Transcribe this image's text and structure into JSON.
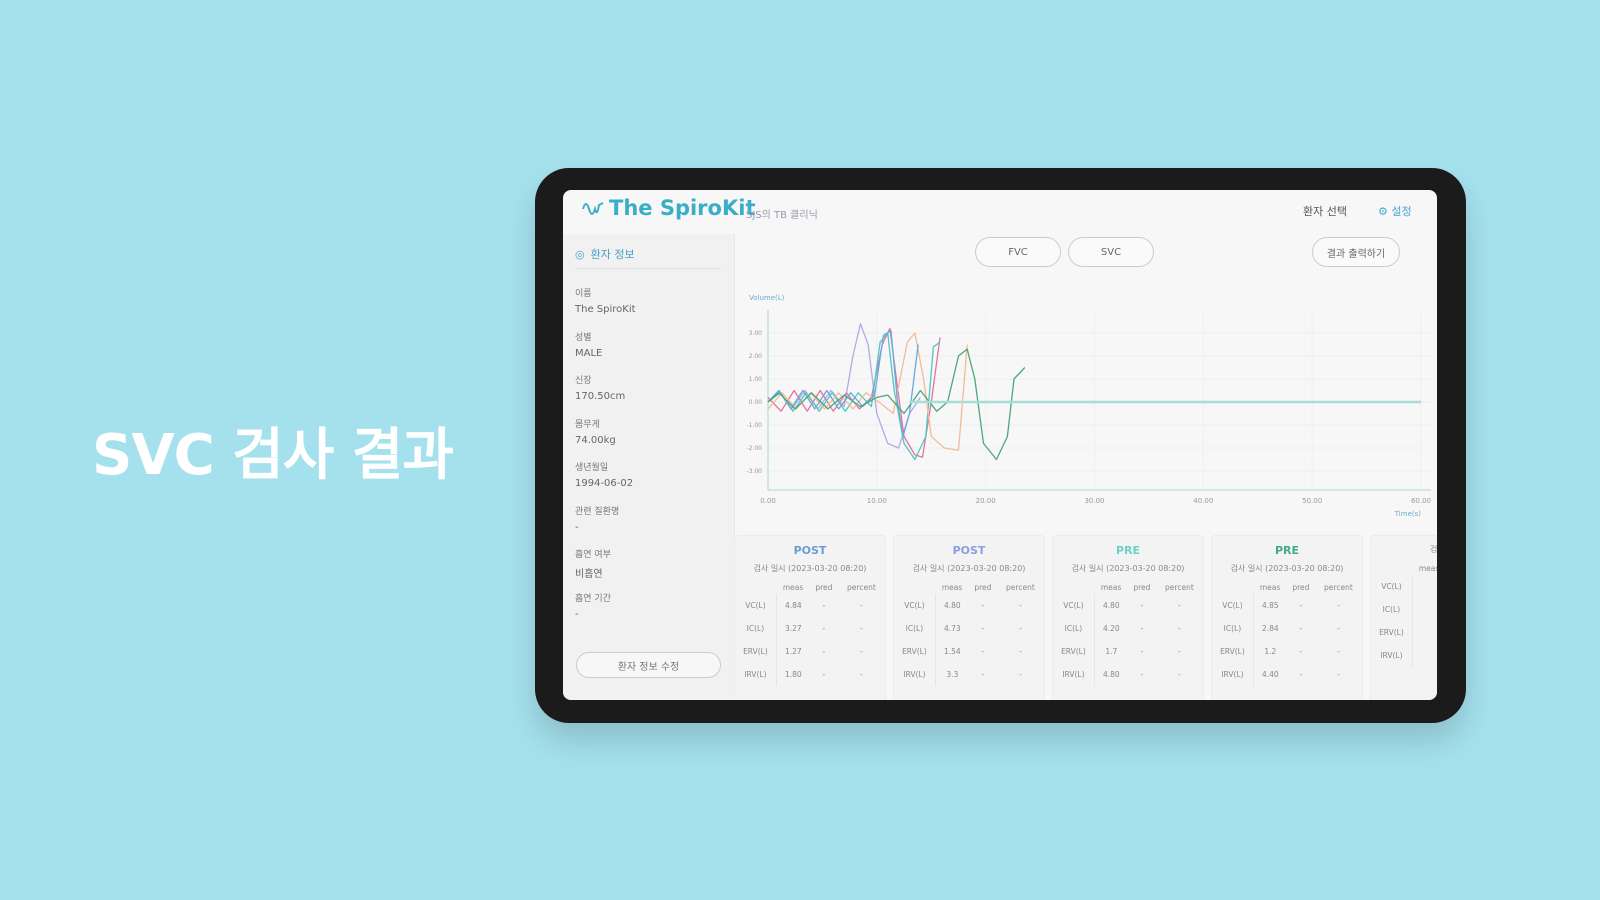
{
  "headline": "SVC 검사 결과",
  "header": {
    "logo": "The SpiroKit",
    "clinic": "SJS의 TB 클리닉",
    "patient_select": "환자 선택",
    "settings": "설정",
    "accent": "#3aaec6"
  },
  "sidebar": {
    "title": "환자 정보",
    "fields": [
      {
        "label": "이름",
        "value": "The SpiroKit"
      },
      {
        "label": "성별",
        "value": "MALE"
      },
      {
        "label": "신장",
        "value": "170.50cm"
      },
      {
        "label": "몸무게",
        "value": "74.00kg"
      },
      {
        "label": "생년월일",
        "value": "1994-06-02"
      },
      {
        "label": "관련 질환명",
        "value": "-"
      },
      {
        "label": "흡연 여부",
        "value": "비흡연"
      },
      {
        "label": "흡연 기간",
        "value": "-"
      }
    ],
    "edit_button": "환자 정보 수정"
  },
  "tabs": [
    {
      "label": "FVC"
    },
    {
      "label": "SVC"
    }
  ],
  "export_button": "결과 출력하기",
  "chart_data": {
    "type": "line",
    "ylabel": "Volume(L)",
    "xlabel": "Time(s)",
    "xlim": [
      0,
      60
    ],
    "ylim": [
      -3.5,
      3.5
    ],
    "xticks": [
      "0.00",
      "10.00",
      "20.00",
      "30.00",
      "40.00",
      "50.00",
      "60.00"
    ],
    "yticks": [
      "3.00",
      "2.00",
      "1.00",
      "0.00",
      "-1.00",
      "-2.00",
      "-3.00"
    ],
    "grid": true,
    "series": [
      {
        "color": "#b3aae6",
        "points": [
          [
            0,
            0
          ],
          [
            1,
            0.5
          ],
          [
            2.2,
            -0.3
          ],
          [
            3.4,
            0.5
          ],
          [
            4.6,
            -0.3
          ],
          [
            5.8,
            0.5
          ],
          [
            7,
            -0.2
          ],
          [
            7.8,
            2
          ],
          [
            8.5,
            3.4
          ],
          [
            9.2,
            2.5
          ],
          [
            10,
            -0.5
          ],
          [
            11,
            -1.8
          ],
          [
            12,
            -2.0
          ],
          [
            13,
            -0.5
          ],
          [
            14,
            0.2
          ]
        ]
      },
      {
        "color": "#e8709e",
        "points": [
          [
            0,
            0.2
          ],
          [
            1.2,
            -0.4
          ],
          [
            2.4,
            0.5
          ],
          [
            3.6,
            -0.4
          ],
          [
            4.8,
            0.5
          ],
          [
            6,
            -0.4
          ],
          [
            7.2,
            0.4
          ],
          [
            8.4,
            -0.3
          ],
          [
            9.5,
            0.2
          ],
          [
            10.5,
            2.5
          ],
          [
            11.2,
            3.2
          ],
          [
            11.8,
            1
          ],
          [
            12.5,
            -1.5
          ],
          [
            13.5,
            -2.3
          ],
          [
            14.2,
            -2.4
          ],
          [
            15,
            0
          ],
          [
            15.8,
            2.8
          ]
        ]
      },
      {
        "color": "#4cc9c0",
        "points": [
          [
            0,
            0
          ],
          [
            1.1,
            0.4
          ],
          [
            2.3,
            -0.4
          ],
          [
            3.5,
            0.4
          ],
          [
            4.7,
            -0.4
          ],
          [
            5.9,
            0.4
          ],
          [
            7.1,
            -0.4
          ],
          [
            8.3,
            0.4
          ],
          [
            9.5,
            -0.2
          ],
          [
            10.3,
            2.6
          ],
          [
            11,
            3.0
          ],
          [
            11.6,
            0.5
          ],
          [
            12.5,
            -1.8
          ],
          [
            13.5,
            -2.5
          ],
          [
            14.5,
            -1.5
          ],
          [
            15.2,
            2.4
          ],
          [
            15.8,
            2.6
          ]
        ]
      },
      {
        "color": "#f2bc96",
        "points": [
          [
            0,
            -0.3
          ],
          [
            1.3,
            0.4
          ],
          [
            2.6,
            -0.3
          ],
          [
            3.9,
            0.4
          ],
          [
            5.2,
            -0.3
          ],
          [
            6.5,
            0.4
          ],
          [
            7.8,
            -0.3
          ],
          [
            9,
            0.4
          ],
          [
            10.2,
            0
          ],
          [
            11.5,
            -0.5
          ],
          [
            12.8,
            2.6
          ],
          [
            13.5,
            3.0
          ],
          [
            14.3,
            1
          ],
          [
            15,
            -1.5
          ],
          [
            16.2,
            -2.0
          ],
          [
            17.5,
            -2.1
          ],
          [
            18.3,
            2.5
          ]
        ]
      },
      {
        "color": "#6aa8e0",
        "points": [
          [
            0,
            0
          ],
          [
            1,
            0.5
          ],
          [
            2.1,
            -0.3
          ],
          [
            3.2,
            0.5
          ],
          [
            4.3,
            -0.3
          ],
          [
            5.4,
            0.5
          ],
          [
            6.5,
            -0.3
          ],
          [
            7.6,
            0.4
          ],
          [
            8.7,
            -0.2
          ],
          [
            9.8,
            0.3
          ],
          [
            10.6,
            2.9
          ],
          [
            11.3,
            3.1
          ],
          [
            11.9,
            0
          ],
          [
            12.4,
            -1.5
          ],
          [
            13,
            -0.5
          ],
          [
            13.8,
            2.5
          ]
        ]
      },
      {
        "color": "#4aa878",
        "points": [
          [
            0,
            0
          ],
          [
            1,
            0.4
          ],
          [
            2.5,
            -0.3
          ],
          [
            4,
            0.4
          ],
          [
            5.5,
            -0.3
          ],
          [
            7,
            0.3
          ],
          [
            8.5,
            -0.2
          ],
          [
            10,
            0.2
          ],
          [
            11,
            0.3
          ],
          [
            12.5,
            -0.5
          ],
          [
            14,
            0.5
          ],
          [
            15.5,
            -0.4
          ],
          [
            16.5,
            0
          ],
          [
            17.5,
            2.0
          ],
          [
            18.3,
            2.3
          ],
          [
            19,
            1
          ],
          [
            19.8,
            -1.8
          ],
          [
            21,
            -2.5
          ],
          [
            22,
            -1.5
          ],
          [
            22.6,
            1.0
          ],
          [
            23.6,
            1.5
          ]
        ]
      },
      {
        "color": "#a8dcd6",
        "points": [
          [
            13,
            0
          ],
          [
            60,
            0
          ]
        ]
      }
    ]
  },
  "results": {
    "columns": [
      "meas",
      "pred",
      "percent"
    ],
    "cards": [
      {
        "tag": "POST",
        "tag_color": "#6a9fd0",
        "date": "검사 일시 (2023-03-20 08:20)",
        "rows": [
          [
            "VC(L)",
            "4.84",
            "-",
            "-"
          ],
          [
            "IC(L)",
            "3.27",
            "-",
            "-"
          ],
          [
            "ERV(L)",
            "1.27",
            "-",
            "-"
          ],
          [
            "IRV(L)",
            "1.80",
            "-",
            "-"
          ]
        ]
      },
      {
        "tag": "POST",
        "tag_color": "#8a9fe0",
        "date": "검사 일시 (2023-03-20 08:20)",
        "rows": [
          [
            "VC(L)",
            "4.80",
            "-",
            "-"
          ],
          [
            "IC(L)",
            "4.73",
            "-",
            "-"
          ],
          [
            "ERV(L)",
            "1.54",
            "-",
            "-"
          ],
          [
            "IRV(L)",
            "3.3",
            "-",
            "-"
          ]
        ]
      },
      {
        "tag": "PRE",
        "tag_color": "#6cd0c8",
        "date": "검사 일시 (2023-03-20 08:20)",
        "rows": [
          [
            "VC(L)",
            "4.80",
            "-",
            "-"
          ],
          [
            "IC(L)",
            "4.20",
            "-",
            "-"
          ],
          [
            "ERV(L)",
            "1.7",
            "-",
            "-"
          ],
          [
            "IRV(L)",
            "4.80",
            "-",
            "-"
          ]
        ]
      },
      {
        "tag": "PRE",
        "tag_color": "#3fae84",
        "date": "검사 일시 (2023-03-20 08:20)",
        "rows": [
          [
            "VC(L)",
            "4.85",
            "-",
            "-"
          ],
          [
            "IC(L)",
            "2.84",
            "-",
            "-"
          ],
          [
            "ERV(L)",
            "1.2",
            "-",
            "-"
          ],
          [
            "IRV(L)",
            "4.40",
            "-",
            "-"
          ]
        ]
      },
      {
        "tag": "",
        "tag_color": "#6a9fd0",
        "date": "검사 일시",
        "rows": [
          [
            "VC(L)",
            "",
            "",
            ""
          ],
          [
            "IC(L)",
            "",
            "",
            ""
          ],
          [
            "ERV(L)",
            "",
            "",
            ""
          ],
          [
            "IRV(L)",
            "",
            "",
            ""
          ]
        ]
      }
    ]
  }
}
